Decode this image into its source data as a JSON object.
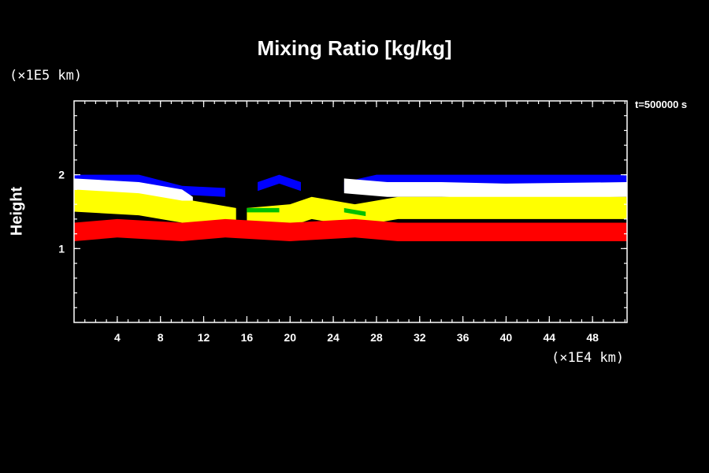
{
  "chart_data": {
    "type": "heatmap",
    "title": "Mixing Ratio [kg/kg]",
    "xlabel": "",
    "ylabel": "Height",
    "x_unit": "(×1E4 km)",
    "y_unit": "(×1E5 km)",
    "time_label": "t=500000 s",
    "xlim": [
      0,
      51.2
    ],
    "ylim": [
      0,
      3.0
    ],
    "x_ticks": [
      4,
      8,
      12,
      16,
      20,
      24,
      28,
      32,
      36,
      40,
      44,
      48
    ],
    "y_ticks": [
      1,
      2
    ],
    "x_minor_step": 1,
    "y_minor_step": 0.2,
    "background": "#000000",
    "frame_color": "#ffffff",
    "layers": [
      {
        "color": "#0000ff",
        "segments": [
          [
            [
              0,
              2.0
            ],
            [
              6,
              2.0
            ],
            [
              10,
              1.85
            ],
            [
              14,
              1.82
            ],
            [
              14,
              1.82
            ]
          ],
          [
            [
              17,
              1.9
            ],
            [
              19,
              2.0
            ],
            [
              21,
              1.9
            ]
          ],
          [
            [
              25,
              1.9
            ],
            [
              28,
              2.0
            ],
            [
              36,
              2.0
            ],
            [
              44,
              2.0
            ],
            [
              51.2,
              2.0
            ]
          ]
        ]
      },
      {
        "color": "#ffffff",
        "segments": [
          [
            [
              0,
              1.95
            ],
            [
              6,
              1.9
            ],
            [
              10,
              1.8
            ],
            [
              11,
              1.7
            ]
          ],
          [
            [
              25,
              1.95
            ],
            [
              29,
              1.9
            ],
            [
              34,
              1.9
            ],
            [
              40,
              1.88
            ],
            [
              51.2,
              1.9
            ]
          ]
        ]
      },
      {
        "color": "#ffff00",
        "segments": [
          [
            [
              0,
              1.8
            ],
            [
              6,
              1.75
            ],
            [
              10,
              1.65
            ],
            [
              11,
              1.65
            ],
            [
              15,
              1.55
            ]
          ],
          [
            [
              16,
              1.55
            ],
            [
              20,
              1.6
            ],
            [
              22,
              1.7
            ],
            [
              26,
              1.6
            ],
            [
              30,
              1.7
            ],
            [
              40,
              1.7
            ],
            [
              51.2,
              1.7
            ]
          ]
        ]
      },
      {
        "color": "#00c000",
        "segments": [
          [
            [
              16,
              1.55
            ],
            [
              19,
              1.55
            ]
          ],
          [
            [
              25,
              1.55
            ],
            [
              27,
              1.5
            ]
          ]
        ]
      },
      {
        "color": "#ff0000",
        "segments": [
          [
            [
              0,
              1.35
            ],
            [
              4,
              1.4
            ],
            [
              10,
              1.35
            ],
            [
              14,
              1.4
            ],
            [
              20,
              1.35
            ],
            [
              26,
              1.4
            ],
            [
              30,
              1.35
            ],
            [
              40,
              1.35
            ],
            [
              51.2,
              1.35
            ]
          ]
        ]
      }
    ]
  }
}
